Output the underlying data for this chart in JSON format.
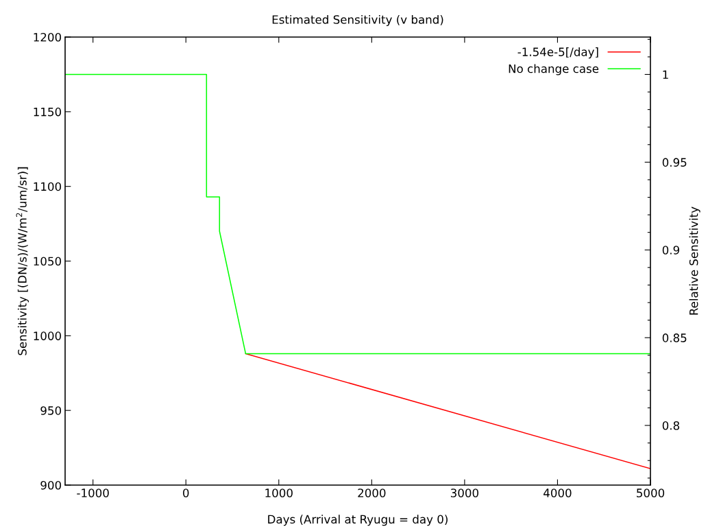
{
  "chart_data": {
    "type": "line",
    "title": "Estimated Sensitivity (v band)",
    "xlabel": "Days (Arrival at Ryugu = day 0)",
    "ylabel": "Sensitivity [(DN/s)/(W/m$^{2}$/um/sr)]",
    "y2label": "Relative Sensitivity",
    "xlim": [
      -1300,
      5000
    ],
    "xticks": [
      -1000,
      0,
      1000,
      2000,
      3000,
      4000,
      5000
    ],
    "ylim": [
      900,
      1200
    ],
    "yticks": [
      900,
      950,
      1000,
      1050,
      1100,
      1150,
      1200
    ],
    "y2lim": [
      0.766,
      1.0213
    ],
    "y2ticks": [
      {
        "value": 0.77,
        "label": null
      },
      {
        "value": 0.78,
        "label": null
      },
      {
        "value": 0.79,
        "label": null
      },
      0.8,
      {
        "value": 0.81,
        "label": null
      },
      {
        "value": 0.82,
        "label": null
      },
      {
        "value": 0.83,
        "label": null
      },
      {
        "value": 0.84,
        "label": null
      },
      0.85,
      {
        "value": 0.86,
        "label": null
      },
      {
        "value": 0.87,
        "label": null
      },
      {
        "value": 0.88,
        "label": null
      },
      {
        "value": 0.89,
        "label": null
      },
      0.9,
      {
        "value": 0.91,
        "label": null
      },
      {
        "value": 0.92,
        "label": null
      },
      {
        "value": 0.93,
        "label": null
      },
      {
        "value": 0.94,
        "label": null
      },
      0.95,
      {
        "value": 0.96,
        "label": null
      },
      {
        "value": 0.97,
        "label": null
      },
      {
        "value": 0.98,
        "label": null
      },
      {
        "value": 0.99,
        "label": null
      },
      1,
      {
        "value": 1.01,
        "label": null
      },
      {
        "value": 1.02,
        "label": null
      }
    ],
    "legend": "top right",
    "grid": false,
    "series": [
      {
        "name": "-1.54e-5[/day]",
        "color": "#ff0000",
        "x": [
          643,
          5000
        ],
        "values": [
          988,
          911
        ]
      },
      {
        "name": "No change case",
        "color": "#00ff00",
        "x": [
          -1300,
          222,
          222,
          362,
          362,
          643,
          5000
        ],
        "values": [
          1175,
          1175,
          1093,
          1093,
          1070,
          988,
          988
        ]
      }
    ]
  }
}
